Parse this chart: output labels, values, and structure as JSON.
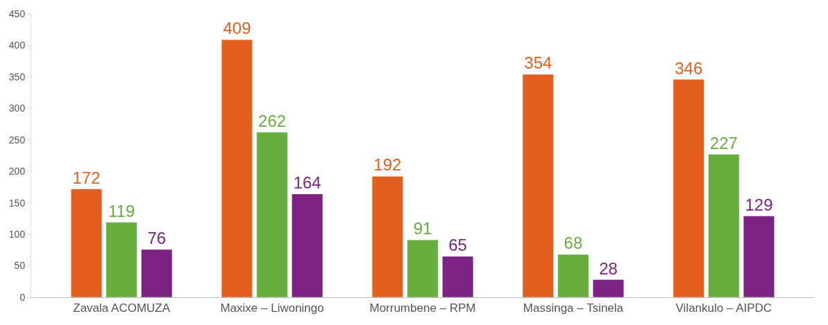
{
  "chart_data": {
    "type": "bar",
    "categories": [
      "Zavala ACOMUZA",
      "Maxixe – Liwoningo",
      "Morrumbene – RPM",
      "Massinga – Tsinela",
      "Vilankulo – AIPDC"
    ],
    "series": [
      {
        "color": "#e35f20",
        "values": [
          172,
          409,
          192,
          354,
          346
        ]
      },
      {
        "color": "#67ae3e",
        "values": [
          119,
          262,
          91,
          68,
          227
        ]
      },
      {
        "color": "#7b2282",
        "values": [
          76,
          164,
          65,
          28,
          129
        ]
      }
    ],
    "ylim": [
      0,
      450
    ],
    "yticks": [
      0,
      50,
      100,
      150,
      200,
      250,
      300,
      350,
      400,
      450
    ],
    "data_labels": true,
    "legend": false
  }
}
